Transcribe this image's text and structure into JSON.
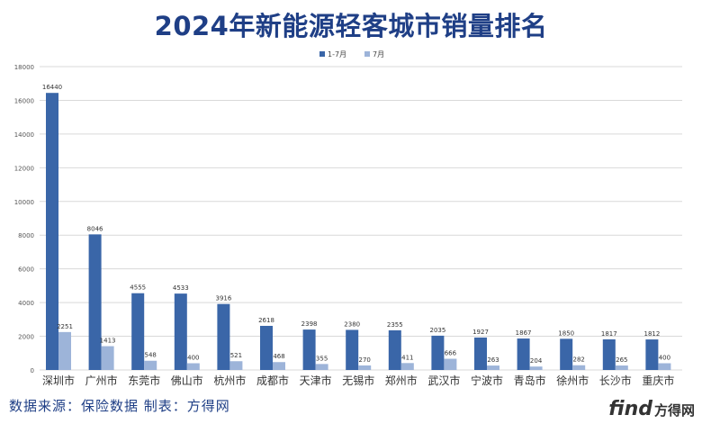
{
  "title": "2024年新能源轻客城市销量排名",
  "source_text": "数据来源：保险数据  制表：方得网",
  "logo": {
    "word": "find",
    "cn": "方得网"
  },
  "colors": {
    "series1": "#3a66a8",
    "series2": "#9db4d9",
    "title": "#1f3f86",
    "grid": "#d9d9d9"
  },
  "chart_data": {
    "type": "bar",
    "title": "2024年新能源轻客城市销量排名",
    "categories": [
      "深圳市",
      "广州市",
      "东莞市",
      "佛山市",
      "杭州市",
      "成都市",
      "天津市",
      "无锡市",
      "郑州市",
      "武汉市",
      "宁波市",
      "青岛市",
      "徐州市",
      "长沙市",
      "重庆市"
    ],
    "series": [
      {
        "name": "1-7月",
        "values": [
          16440,
          8046,
          4555,
          4533,
          3916,
          2618,
          2398,
          2380,
          2355,
          2035,
          1927,
          1867,
          1850,
          1817,
          1812
        ]
      },
      {
        "name": "7月",
        "values": [
          2251,
          1413,
          548,
          400,
          521,
          468,
          355,
          270,
          411,
          666,
          263,
          204,
          282,
          265,
          400
        ]
      }
    ],
    "ylim": [
      0,
      18000
    ],
    "yticks": [
      0,
      2000,
      4000,
      6000,
      8000,
      10000,
      12000,
      14000,
      16000,
      18000
    ],
    "grid": true,
    "legend": "top-center",
    "data_labels": true
  }
}
